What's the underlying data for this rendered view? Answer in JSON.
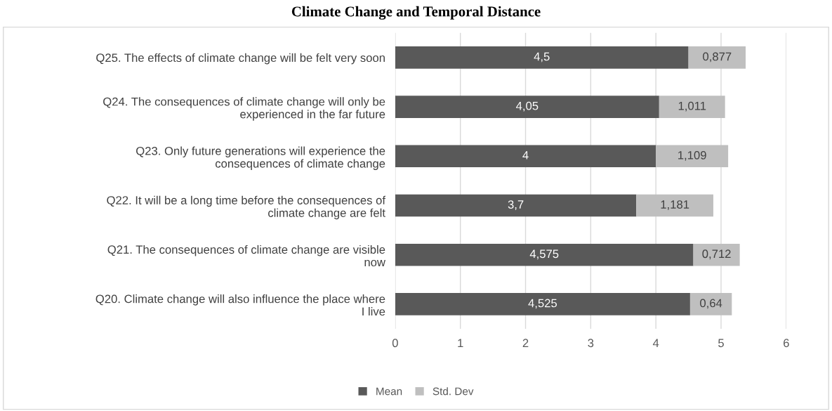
{
  "chart_data": {
    "type": "bar",
    "orientation": "horizontal",
    "stacked": true,
    "title": "Climate Change and Temporal Distance",
    "categories": [
      "Q25. The effects of climate change will be felt very soon",
      "Q24. The consequences of climate change will only be\nexperienced in the far future",
      "Q23. Only future generations will experience the\nconsequences of climate change",
      "Q22. It will be a long time before the consequences of\nclimate change are felt",
      "Q21. The consequences of climate change are visible\nnow",
      "Q20. Climate change will also influence the place where\nI live"
    ],
    "series": [
      {
        "name": "Mean",
        "color": "#595959",
        "values": [
          4.5,
          4.05,
          4,
          3.7,
          4.575,
          4.525
        ],
        "value_labels": [
          "4,5",
          "4,05",
          "4",
          "3,7",
          "4,575",
          "4,525"
        ]
      },
      {
        "name": "Std. Dev",
        "color": "#bfbfbf",
        "values": [
          0.877,
          1.011,
          1.109,
          1.181,
          0.712,
          0.64
        ],
        "value_labels": [
          "0,877",
          "1,011",
          "1,109",
          "1,181",
          "0,712",
          "0,64"
        ]
      }
    ],
    "xlim": [
      0,
      6
    ],
    "xticks": [
      0,
      1,
      2,
      3,
      4,
      5,
      6
    ],
    "grid": "x",
    "legend": "bottom"
  }
}
